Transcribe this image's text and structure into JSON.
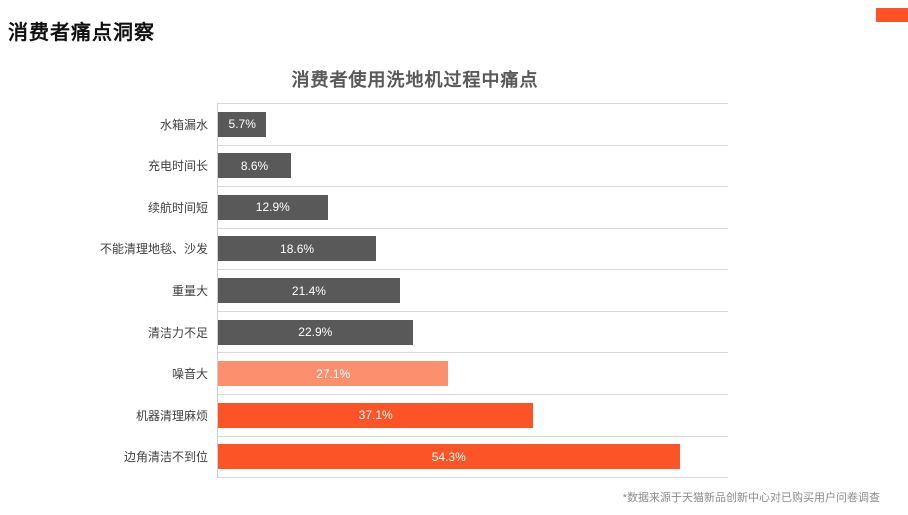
{
  "page": {
    "title": "消费者痛点洞察",
    "footnote": "*数据来源于天猫新品创新中心对已购买用户问卷调查",
    "accent_color": "#FC5426"
  },
  "chart_data": {
    "type": "bar",
    "orientation": "horizontal",
    "title": "消费者使用洗地机过程中痛点",
    "categories": [
      "水箱漏水",
      "充电时间长",
      "续航时间短",
      "不能清理地毯、沙发",
      "重量大",
      "清洁力不足",
      "噪音大",
      "机器清理麻烦",
      "边角清洁不到位"
    ],
    "values": [
      5.7,
      8.6,
      12.9,
      18.6,
      21.4,
      22.9,
      27.1,
      37.1,
      54.3
    ],
    "labels": [
      "5.7%",
      "8.6%",
      "12.9%",
      "18.6%",
      "21.4%",
      "22.9%",
      "27.1%",
      "37.1%",
      "54.3%"
    ],
    "bar_colors": [
      "#595959",
      "#595959",
      "#595959",
      "#595959",
      "#595959",
      "#595959",
      "#FC8F6E",
      "#FC5426",
      "#FC5426"
    ],
    "xlim": [
      0,
      60
    ],
    "grid": true,
    "gridline_color": "#d9d9d9",
    "value_label_color": "#ffffff",
    "legend": "none",
    "x_tick_labels": "none"
  }
}
